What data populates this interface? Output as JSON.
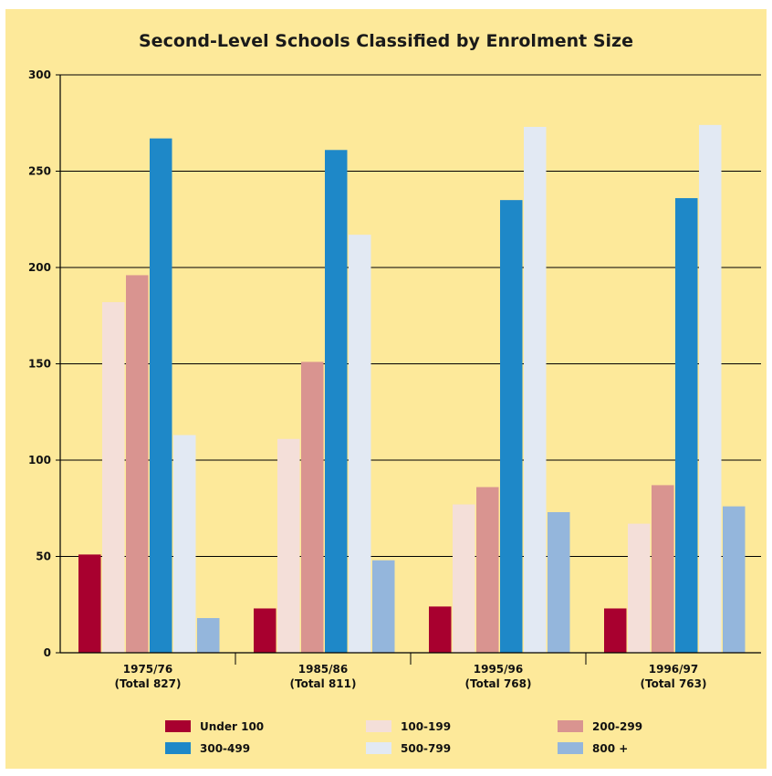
{
  "chart_data": {
    "type": "bar",
    "title": "Second-Level Schools Classified by Enrolment Size",
    "xlabel": "",
    "ylabel": "",
    "ylim": [
      0,
      300
    ],
    "yticks": [
      0,
      50,
      100,
      150,
      200,
      250,
      300
    ],
    "grid": true,
    "legend_position": "bottom",
    "categories": [
      [
        "1975/76",
        "(Total 827)"
      ],
      [
        "1985/86",
        "(Total 811)"
      ],
      [
        "1995/96",
        "(Total 768)"
      ],
      [
        "1996/97",
        "(Total 763)"
      ]
    ],
    "series": [
      {
        "name": "Under 100",
        "color": "#a8002f",
        "values": [
          51,
          23,
          24,
          23
        ]
      },
      {
        "name": "100-199",
        "color": "#f4dfd9",
        "values": [
          182,
          111,
          77,
          67
        ]
      },
      {
        "name": "200-299",
        "color": "#d99490",
        "values": [
          196,
          151,
          86,
          87
        ]
      },
      {
        "name": "300-499",
        "color": "#1e88c8",
        "values": [
          267,
          261,
          235,
          236
        ]
      },
      {
        "name": "500-799",
        "color": "#e2e9f3",
        "values": [
          113,
          217,
          273,
          274
        ]
      },
      {
        "name": "800 +",
        "color": "#94b6dc",
        "values": [
          18,
          48,
          73,
          76
        ]
      }
    ],
    "background_color": "#fde99a"
  }
}
